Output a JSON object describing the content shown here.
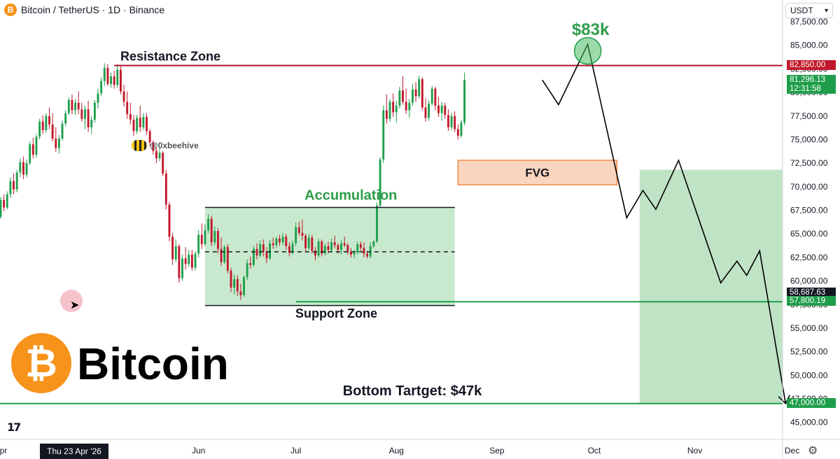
{
  "header": {
    "symbol": "B",
    "title": "Bitcoin / TetherUS · 1D · Binance"
  },
  "currency_select": {
    "value": "USDT",
    "chevron": "▾"
  },
  "watermark": {
    "handle": "@0xbeehive"
  },
  "brand": {
    "logo_glyph": "₿",
    "name": "Bitcoin"
  },
  "date_pill": "Thu 23 Apr '26",
  "gear_icon": "⚙",
  "tv_logo": "17",
  "price_tags": [
    {
      "text": "82,850.00",
      "value": 82850,
      "color": "#c2182b"
    },
    {
      "text": "81,296.13",
      "value": 81296.13,
      "color": "#1e9e4a"
    },
    {
      "text": "12:31:58",
      "value": 80300,
      "color": "#1e9e4a"
    },
    {
      "text": "58,687.63",
      "value": 58687.63,
      "color": "#131722"
    },
    {
      "text": "57,800.19",
      "value": 57800.19,
      "color": "#1e9e4a"
    },
    {
      "text": "47,000.00",
      "value": 47000,
      "color": "#1e9e4a"
    }
  ],
  "chart_data": {
    "type": "candlestick",
    "title": "Bitcoin / TetherUS · 1D · Binance",
    "y_ticks": [
      45000,
      47500,
      50000,
      52500,
      55000,
      57500,
      60000,
      62500,
      65000,
      67500,
      70000,
      72500,
      75000,
      77500,
      80000,
      82500,
      85000,
      87500
    ],
    "y_tick_labels": [
      "45,000.00",
      "47,500.00",
      "50,000.00",
      "52,500.00",
      "55,000.00",
      "57,500.00",
      "60,000.00",
      "62,500.00",
      "65,000.00",
      "67,500.00",
      "70,000.00",
      "72,500.00",
      "75,000.00",
      "77,500.00",
      "80,000.00",
      "82,500.00",
      "85,000.00",
      "87,500.00"
    ],
    "ylim": [
      43200,
      89800
    ],
    "x_labels": [
      {
        "label": "Apr",
        "date": "2026-04-01"
      },
      {
        "label": "Jun",
        "date": "2026-06-01"
      },
      {
        "label": "Jul",
        "date": "2026-07-01"
      },
      {
        "label": "Aug",
        "date": "2026-08-01"
      },
      {
        "label": "Sep",
        "date": "2026-09-01"
      },
      {
        "label": "Oct",
        "date": "2026-10-01"
      },
      {
        "label": "Nov",
        "date": "2026-11-01"
      },
      {
        "label": "Dec",
        "date": "2026-12-01"
      }
    ],
    "colors": {
      "up": "#1e9e4a",
      "down": "#c2182b",
      "resistance": "#b5122d",
      "support": "#1e9e4a"
    },
    "annotations": {
      "resistance_label": "Resistance Zone",
      "resistance_price": 82850,
      "accumulation_label": "Accumulation",
      "accumulation_box": {
        "start": "2026-06-03",
        "end": "2026-08-19",
        "top": 67800,
        "bottom": 57400,
        "mid": 63100
      },
      "support_label": "Support Zone",
      "support_price": 57800,
      "fvg_label": "FVG",
      "fvg_box": {
        "start": "2026-08-20",
        "end": "2026-10-08",
        "top": 72800,
        "bottom": 70200
      },
      "target_label": "$83k",
      "target_price": 84400,
      "target_date": "2026-09-29",
      "bottom_label": "Bottom Tartget: $47k",
      "bottom_price": 47000,
      "projection_box": {
        "start": "2026-10-15",
        "end": "2026-11-28",
        "top": 71800,
        "bottom": 47000
      }
    },
    "projection_path": [
      [
        "2026-09-15",
        81300
      ],
      [
        "2026-09-20",
        78700
      ],
      [
        "2026-09-29",
        85100
      ],
      [
        "2026-10-11",
        66700
      ],
      [
        "2026-10-16",
        69600
      ],
      [
        "2026-10-20",
        67600
      ],
      [
        "2026-10-27",
        72800
      ],
      [
        "2026-11-09",
        59800
      ],
      [
        "2026-11-14",
        62100
      ],
      [
        "2026-11-17",
        60600
      ],
      [
        "2026-11-21",
        63200
      ],
      [
        "2026-11-29",
        47000
      ]
    ],
    "candles": {
      "start": "2026-04-01",
      "ohlc": [
        [
          66800,
          68900,
          66600,
          68600
        ],
        [
          68600,
          69200,
          67400,
          67800
        ],
        [
          67800,
          69500,
          67600,
          69200
        ],
        [
          69200,
          71000,
          68800,
          70600
        ],
        [
          70600,
          71400,
          69200,
          69700
        ],
        [
          69700,
          71800,
          69400,
          71500
        ],
        [
          71500,
          73000,
          71000,
          72600
        ],
        [
          72600,
          73200,
          70800,
          71300
        ],
        [
          71300,
          72900,
          71000,
          72500
        ],
        [
          72500,
          74800,
          72300,
          74500
        ],
        [
          74500,
          75200,
          73000,
          73400
        ],
        [
          73400,
          75600,
          73100,
          75300
        ],
        [
          75300,
          77200,
          75000,
          76900
        ],
        [
          76900,
          77600,
          75600,
          76000
        ],
        [
          76000,
          77800,
          75700,
          77500
        ],
        [
          77500,
          78400,
          76100,
          76600
        ],
        [
          76600,
          77800,
          74800,
          75100
        ],
        [
          75100,
          76300,
          73700,
          74100
        ],
        [
          74100,
          75500,
          73500,
          75100
        ],
        [
          75100,
          77000,
          74900,
          76700
        ],
        [
          76700,
          78100,
          76400,
          77800
        ],
        [
          77800,
          79500,
          77600,
          79200
        ],
        [
          79200,
          79800,
          77700,
          78100
        ],
        [
          78100,
          79300,
          77600,
          78900
        ],
        [
          78900,
          80100,
          77700,
          78200
        ],
        [
          78200,
          78900,
          76900,
          77200
        ],
        [
          77200,
          78600,
          76100,
          78200
        ],
        [
          78200,
          79100,
          75800,
          76300
        ],
        [
          76300,
          77500,
          75600,
          77100
        ],
        [
          77100,
          79200,
          76800,
          78900
        ],
        [
          78900,
          80400,
          78300,
          79900
        ],
        [
          79900,
          81600,
          79600,
          81200
        ],
        [
          81200,
          83100,
          80700,
          82600
        ],
        [
          82600,
          83000,
          80700,
          80900
        ],
        [
          80900,
          82100,
          80500,
          81700
        ],
        [
          81700,
          82300,
          80400,
          80800
        ],
        [
          80800,
          83000,
          80500,
          82400
        ],
        [
          82400,
          82800,
          79800,
          80100
        ],
        [
          80100,
          80800,
          78500,
          79000
        ],
        [
          79000,
          80100,
          77200,
          77700
        ],
        [
          77700,
          78900,
          76600,
          77100
        ],
        [
          77100,
          77600,
          75400,
          75900
        ],
        [
          75900,
          77600,
          75600,
          77300
        ],
        [
          77300,
          78600,
          75800,
          76300
        ],
        [
          76300,
          77800,
          76000,
          77400
        ],
        [
          77400,
          77800,
          75500,
          75900
        ],
        [
          75900,
          76100,
          74300,
          74700
        ],
        [
          74700,
          74900,
          73400,
          73800
        ],
        [
          73800,
          74200,
          72500,
          73000
        ],
        [
          73000,
          74100,
          72700,
          73600
        ],
        [
          73600,
          73800,
          71100,
          71400
        ],
        [
          71400,
          71800,
          67600,
          68100
        ],
        [
          68100,
          68400,
          64200,
          64700
        ],
        [
          64700,
          65100,
          61700,
          62300
        ],
        [
          62300,
          64400,
          62000,
          63700
        ],
        [
          63700,
          63900,
          59800,
          60300
        ],
        [
          60300,
          62800,
          60000,
          62400
        ],
        [
          62400,
          63600,
          61200,
          61800
        ],
        [
          61800,
          63300,
          61500,
          62800
        ],
        [
          62800,
          63300,
          61100,
          61400
        ],
        [
          61400,
          63200,
          61100,
          62900
        ],
        [
          62900,
          65400,
          62500,
          64900
        ],
        [
          64900,
          66100,
          63400,
          63900
        ],
        [
          63900,
          66000,
          63700,
          65400
        ],
        [
          65400,
          67100,
          65100,
          66600
        ],
        [
          66600,
          66900,
          63700,
          64100
        ],
        [
          64100,
          65800,
          63800,
          65300
        ],
        [
          65300,
          65600,
          62900,
          63400
        ],
        [
          63400,
          64600,
          61600,
          62000
        ],
        [
          62000,
          63800,
          61800,
          63600
        ],
        [
          63600,
          63900,
          60800,
          61100
        ],
        [
          61100,
          61400,
          58800,
          59300
        ],
        [
          59300,
          60700,
          58600,
          60200
        ],
        [
          60200,
          60600,
          58400,
          58900
        ],
        [
          58900,
          59700,
          58000,
          58500
        ],
        [
          58500,
          60600,
          58300,
          60400
        ],
        [
          60400,
          62300,
          60100,
          61900
        ],
        [
          61900,
          62600,
          61300,
          61700
        ],
        [
          61700,
          63700,
          61500,
          63400
        ],
        [
          63400,
          64000,
          62300,
          62700
        ],
        [
          62700,
          64300,
          62500,
          63900
        ],
        [
          63900,
          64400,
          62600,
          63100
        ],
        [
          63100,
          63600,
          61900,
          62400
        ],
        [
          62400,
          64400,
          62200,
          64000
        ],
        [
          64000,
          64600,
          63400,
          63800
        ],
        [
          63800,
          64700,
          63500,
          64500
        ],
        [
          64500,
          64900,
          63700,
          64100
        ],
        [
          64100,
          65100,
          63800,
          64700
        ],
        [
          64700,
          65000,
          63300,
          63700
        ],
        [
          63700,
          64100,
          62600,
          63000
        ],
        [
          63000,
          64300,
          62800,
          64000
        ],
        [
          64000,
          66200,
          63700,
          65700
        ],
        [
          65700,
          66300,
          64800,
          65100
        ],
        [
          65100,
          66500,
          64300,
          64800
        ],
        [
          64800,
          65000,
          63100,
          63500
        ],
        [
          63500,
          65000,
          63300,
          64600
        ],
        [
          64600,
          64900,
          62900,
          63200
        ],
        [
          63200,
          63600,
          62200,
          62700
        ],
        [
          62700,
          64500,
          62500,
          64200
        ],
        [
          64200,
          64400,
          62600,
          62900
        ],
        [
          62900,
          64000,
          62700,
          63700
        ],
        [
          63700,
          64200,
          62900,
          63300
        ],
        [
          63300,
          64500,
          63000,
          64100
        ],
        [
          64100,
          64800,
          63500,
          63800
        ],
        [
          63800,
          64000,
          62900,
          63300
        ],
        [
          63300,
          64300,
          62800,
          64000
        ],
        [
          64000,
          64700,
          63600,
          63800
        ],
        [
          63800,
          64000,
          62800,
          63100
        ],
        [
          63100,
          63500,
          62500,
          62800
        ],
        [
          62800,
          63300,
          62400,
          63000
        ],
        [
          63000,
          64200,
          62800,
          63900
        ],
        [
          63900,
          64200,
          63200,
          63500
        ],
        [
          63500,
          64100,
          62500,
          62900
        ],
        [
          62900,
          63200,
          62400,
          62600
        ],
        [
          62600,
          64100,
          62400,
          63700
        ],
        [
          63700,
          64300,
          63500,
          64200
        ],
        [
          64200,
          68300,
          64000,
          68000
        ],
        [
          68000,
          73100,
          67800,
          72900
        ],
        [
          72900,
          78600,
          72500,
          78100
        ],
        [
          78100,
          79800,
          76700,
          77200
        ],
        [
          77200,
          79300,
          76900,
          79000
        ],
        [
          79000,
          79900,
          77400,
          77900
        ],
        [
          77900,
          79100,
          76800,
          78600
        ],
        [
          78600,
          80600,
          78300,
          80200
        ],
        [
          80200,
          81700,
          78700,
          79000
        ],
        [
          79000,
          80400,
          77700,
          78100
        ],
        [
          78100,
          79300,
          77300,
          78900
        ],
        [
          78900,
          80900,
          78600,
          80300
        ],
        [
          80300,
          81100,
          79000,
          79600
        ],
        [
          79600,
          81800,
          79400,
          81400
        ],
        [
          81400,
          81600,
          78100,
          78400
        ],
        [
          78400,
          79400,
          76900,
          77300
        ],
        [
          77300,
          79200,
          77000,
          78800
        ],
        [
          78800,
          80700,
          78600,
          80400
        ],
        [
          80400,
          80600,
          78100,
          78600
        ],
        [
          78600,
          79500,
          77400,
          77800
        ],
        [
          77800,
          79000,
          77000,
          78600
        ],
        [
          78600,
          78900,
          77200,
          77600
        ],
        [
          77600,
          78200,
          75900,
          76300
        ],
        [
          76300,
          77800,
          76000,
          77500
        ],
        [
          77500,
          78000,
          75800,
          76100
        ],
        [
          76100,
          76600,
          75000,
          75400
        ],
        [
          75400,
          77100,
          75200,
          76800
        ],
        [
          76800,
          82100,
          76500,
          81300
        ]
      ]
    }
  }
}
